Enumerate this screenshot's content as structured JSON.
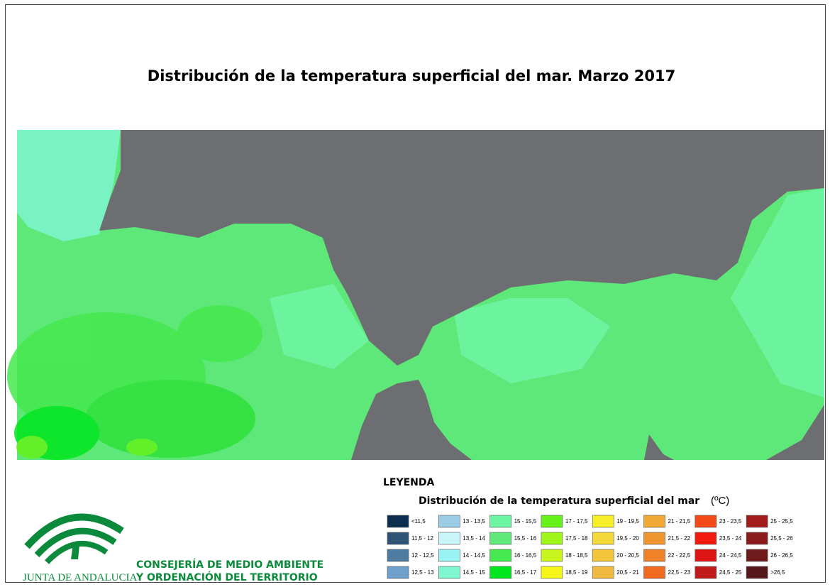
{
  "title": "Distribución de la temperatura superficial del mar. Marzo 2017",
  "legend": {
    "heading": "LEYENDA",
    "subtitle": "Distribución de la temperatura superficial del mar",
    "unit": "(ºC)",
    "items": [
      {
        "label": "<11,5",
        "color": "#0d2f4f"
      },
      {
        "label": "11,5 - 12",
        "color": "#2e5475"
      },
      {
        "label": "12 - 12,5",
        "color": "#4e7ca0"
      },
      {
        "label": "12,5 - 13",
        "color": "#6fa0cc"
      },
      {
        "label": "13 - 13,5",
        "color": "#9ccbe6"
      },
      {
        "label": "13,5 - 14",
        "color": "#c8f5fa"
      },
      {
        "label": "14 - 14,5",
        "color": "#99f3f3"
      },
      {
        "label": "14,5 - 15",
        "color": "#7ff5d0"
      },
      {
        "label": "15 - 15,5",
        "color": "#6ef5a3"
      },
      {
        "label": "15,5 - 16",
        "color": "#5fe87a"
      },
      {
        "label": "16 - 16,5",
        "color": "#45e84e"
      },
      {
        "label": "16,5 - 17",
        "color": "#00e61e"
      },
      {
        "label": "17 - 17,5",
        "color": "#66f21a"
      },
      {
        "label": "17,5 - 18",
        "color": "#a0f51a"
      },
      {
        "label": "18 - 18,5",
        "color": "#c9f51f"
      },
      {
        "label": "18,5 - 19",
        "color": "#f5f51a"
      },
      {
        "label": "19 - 19,5",
        "color": "#f5ee28"
      },
      {
        "label": "19,5 - 20",
        "color": "#f5d83a"
      },
      {
        "label": "20 - 20,5",
        "color": "#f2c63c"
      },
      {
        "label": "20,5 - 21",
        "color": "#f0ba40"
      },
      {
        "label": "21 - 21,5",
        "color": "#f0a836"
      },
      {
        "label": "21,5 - 22",
        "color": "#ef9530"
      },
      {
        "label": "22 - 22,5",
        "color": "#ef8228"
      },
      {
        "label": "22,5 - 23",
        "color": "#f06a20"
      },
      {
        "label": "23 - 23,5",
        "color": "#f44a17"
      },
      {
        "label": "23,5 - 24",
        "color": "#f01a0f"
      },
      {
        "label": "24 - 24,5",
        "color": "#dd1515"
      },
      {
        "label": "24,5 - 25",
        "color": "#c01b1b"
      },
      {
        "label": "25 - 25,5",
        "color": "#a31c1c"
      },
      {
        "label": "25,5 - 26",
        "color": "#8a1c1c"
      },
      {
        "label": "26 - 26,5",
        "color": "#701b1b"
      },
      {
        "label": ">26,5",
        "color": "#561818"
      }
    ]
  },
  "logo": {
    "name": "JUNTA DE ANDALUCIA",
    "line1": "CONSEJERÍA DE MEDIO AMBIENTE",
    "line2": "Y ORDENACIÓN DEL TERRITORIO"
  }
}
